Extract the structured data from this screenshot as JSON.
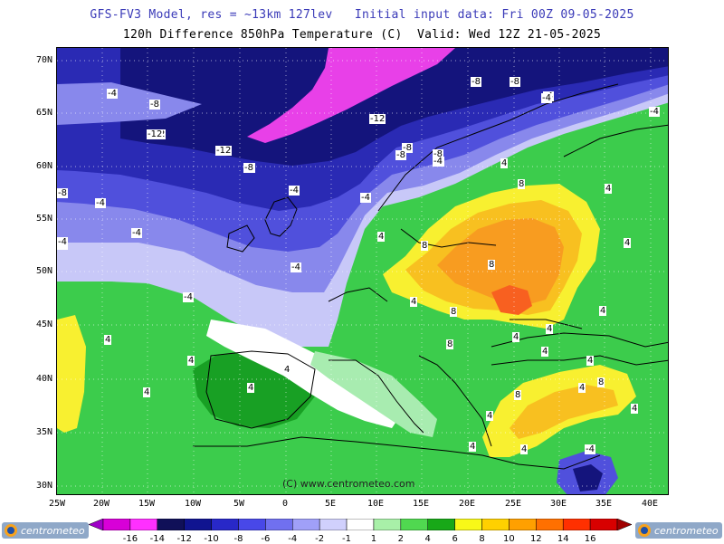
{
  "header": {
    "line1": "GFS-FV3 Model, res = ~13km 127lev   Initial input data: Fri 00Z 09-05-2025",
    "line2": "120h Difference 850hPa Temperature (C)  Valid: Wed 12Z 21-05-2025"
  },
  "axes": {
    "latitudes": [
      "70N",
      "65N",
      "60N",
      "55N",
      "50N",
      "45N",
      "40N",
      "35N",
      "30N"
    ],
    "longitudes": [
      "25W",
      "20W",
      "15W",
      "10W",
      "5W",
      "0",
      "5E",
      "10E",
      "15E",
      "20E",
      "25E",
      "30E",
      "35E",
      "40E"
    ]
  },
  "contour_labels": [
    "-4",
    "-8",
    "-12",
    "-12",
    "-8",
    "-12",
    "-8",
    "-8",
    "-4",
    "-8",
    "-8",
    "-12",
    "-4",
    "-8",
    "-8",
    "-4",
    "-8",
    "-4",
    "-4",
    "-4",
    "-4",
    "-4",
    "-4",
    "-4",
    "-4",
    "-4",
    "4",
    "8",
    "4",
    "8",
    "4",
    "4",
    "4",
    "8",
    "8",
    "4",
    "4",
    "4",
    "4",
    "4",
    "4",
    "4",
    "8",
    "8",
    "4",
    "4",
    "4",
    "4",
    "4",
    "8",
    "4",
    "4",
    "4",
    "-4",
    "-4"
  ],
  "copyright": "(C) www.centrometeo.com",
  "colorbar": {
    "labels": [
      "-16",
      "-14",
      "-12",
      "-10",
      "-8",
      "-6",
      "-4",
      "-2",
      "-1",
      "1",
      "2",
      "4",
      "6",
      "8",
      "10",
      "12",
      "14",
      "16"
    ],
    "colors": [
      "#a000c8",
      "#d800d8",
      "#ff30ff",
      "#101058",
      "#101490",
      "#2828c8",
      "#4848e8",
      "#7070f0",
      "#a0a0f8",
      "#d0d0fc",
      "#ffffff",
      "#a8f0a8",
      "#50d850",
      "#18a818",
      "#f8f818",
      "#ffd000",
      "#ffa000",
      "#ff7000",
      "#ff3000",
      "#d80000",
      "#a00000"
    ]
  },
  "logo_text": "centrometeo",
  "palette": {
    "magenta": "#e840e8",
    "navy": "#14147c",
    "blue": "#2a2ab4",
    "mid_blue": "#5050dc",
    "light_blue": "#8888ec",
    "pale_blue": "#c8c8f8",
    "white": "#ffffff",
    "pale_green": "#a8ecb0",
    "green": "#3ccc4c",
    "dark_green": "#18a024",
    "yellow": "#f8f030",
    "gold": "#f8c020",
    "orange": "#f89c20",
    "red_orange": "#f86020"
  }
}
